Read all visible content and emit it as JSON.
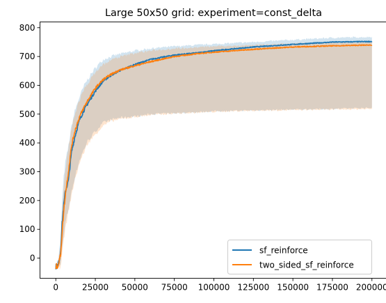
{
  "chart_data": {
    "type": "line",
    "title": "Large 50x50 grid: experiment=const_delta",
    "xlabel": "",
    "ylabel": "",
    "xlim": [
      -10000,
      210000
    ],
    "ylim": [
      -70,
      820
    ],
    "x_ticks": [
      0,
      25000,
      50000,
      75000,
      100000,
      125000,
      150000,
      175000,
      200000
    ],
    "x_tick_labels": [
      "0",
      "25000",
      "50000",
      "75000",
      "100000",
      "125000",
      "150000",
      "175000",
      "200000"
    ],
    "y_ticks": [
      0,
      100,
      200,
      300,
      400,
      500,
      600,
      700,
      800
    ],
    "y_tick_labels": [
      "0",
      "100",
      "200",
      "300",
      "400",
      "500",
      "600",
      "700",
      "800"
    ],
    "grid": false,
    "legend_position": "lower-right",
    "series": [
      {
        "name": "sf_reinforce",
        "color": "#1f77b4",
        "band_color": "#1f77b4",
        "x": [
          0,
          1500,
          3000,
          4000,
          5000,
          6000,
          8000,
          10000,
          12000,
          15000,
          18000,
          20000,
          25000,
          30000,
          35000,
          40000,
          50000,
          60000,
          75000,
          90000,
          100000,
          125000,
          150000,
          175000,
          200000
        ],
        "y": [
          -30,
          -25,
          20,
          120,
          180,
          230,
          270,
          370,
          420,
          480,
          515,
          535,
          580,
          615,
          635,
          650,
          672,
          690,
          705,
          713,
          720,
          733,
          742,
          750,
          752
        ],
        "upper": [
          -20,
          -10,
          60,
          200,
          280,
          330,
          390,
          460,
          510,
          560,
          600,
          620,
          660,
          690,
          700,
          708,
          720,
          728,
          735,
          740,
          743,
          750,
          758,
          765,
          768
        ],
        "lower": [
          -35,
          -35,
          -20,
          40,
          70,
          120,
          170,
          230,
          280,
          340,
          380,
          405,
          440,
          470,
          480,
          487,
          492,
          500,
          503,
          507,
          510,
          513,
          516,
          518,
          522
        ]
      },
      {
        "name": "two_sided_sf_reinforce",
        "color": "#ff7f0e",
        "band_color": "#ff7f0e",
        "x": [
          0,
          1500,
          3000,
          4000,
          5000,
          6000,
          8000,
          10000,
          12000,
          15000,
          18000,
          20000,
          25000,
          30000,
          35000,
          40000,
          50000,
          60000,
          75000,
          90000,
          100000,
          125000,
          150000,
          175000,
          200000
        ],
        "y": [
          -30,
          -25,
          10,
          90,
          160,
          220,
          300,
          390,
          440,
          490,
          525,
          545,
          590,
          620,
          638,
          652,
          668,
          682,
          700,
          710,
          715,
          725,
          733,
          737,
          740
        ],
        "upper": [
          -20,
          -15,
          40,
          160,
          240,
          300,
          380,
          450,
          500,
          550,
          585,
          605,
          645,
          672,
          688,
          698,
          712,
          720,
          728,
          732,
          735,
          740,
          745,
          748,
          750
        ],
        "lower": [
          -35,
          -35,
          -30,
          20,
          60,
          100,
          160,
          220,
          270,
          330,
          370,
          395,
          430,
          460,
          475,
          482,
          490,
          497,
          502,
          505,
          508,
          512,
          514,
          516,
          518
        ]
      }
    ]
  }
}
